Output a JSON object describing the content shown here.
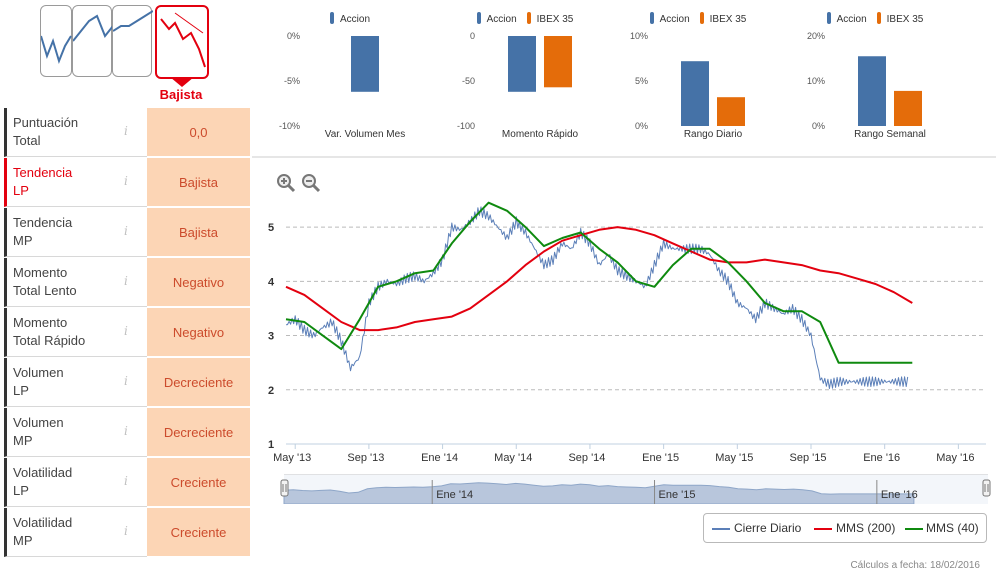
{
  "trend": {
    "active_label": "Bajista"
  },
  "score_table": [
    {
      "name_l1": "Puntuación",
      "name_l2": "Total",
      "value": "0,0",
      "highlight": false
    },
    {
      "name_l1": "Tendencia",
      "name_l2": "LP",
      "value": "Bajista",
      "highlight": true
    },
    {
      "name_l1": "Tendencia",
      "name_l2": "MP",
      "value": "Bajista",
      "highlight": false
    },
    {
      "name_l1": "Momento",
      "name_l2": "Total Lento",
      "value": "Negativo",
      "highlight": false
    },
    {
      "name_l1": "Momento",
      "name_l2": "Total Rápido",
      "value": "Negativo",
      "highlight": false
    },
    {
      "name_l1": "Volumen",
      "name_l2": "LP",
      "value": "Decreciente",
      "highlight": false
    },
    {
      "name_l1": "Volumen",
      "name_l2": "MP",
      "value": "Decreciente",
      "highlight": false
    },
    {
      "name_l1": "Volatilidad",
      "name_l2": "LP",
      "value": "Creciente",
      "highlight": false
    },
    {
      "name_l1": "Volatilidad",
      "name_l2": "MP",
      "value": "Creciente",
      "highlight": false
    }
  ],
  "info_glyph": "i",
  "colors": {
    "accion": "#4572a7",
    "ibex": "#e46c0a",
    "price": "#5b7fb8",
    "mms200": "#e3000f",
    "mms40": "#0f8a0f",
    "navigator": "#b8c6dc"
  },
  "chart_data": [
    {
      "type": "bar",
      "title": "Var. Volumen Mes",
      "series": [
        {
          "name": "Accion",
          "values": [
            -6.2
          ]
        }
      ],
      "ylim": [
        -10,
        0
      ],
      "yticks": [
        "0%",
        "-5%",
        "-10%"
      ]
    },
    {
      "type": "bar",
      "title": "Momento Rápido",
      "series": [
        {
          "name": "Accion",
          "values": [
            -62
          ]
        },
        {
          "name": "IBEX 35",
          "values": [
            -57
          ]
        }
      ],
      "ylim": [
        -100,
        0
      ],
      "yticks": [
        "0",
        "-50",
        "-100"
      ]
    },
    {
      "type": "bar",
      "title": "Rango Diario",
      "series": [
        {
          "name": "Accion",
          "values": [
            7.2
          ]
        },
        {
          "name": "IBEX 35",
          "values": [
            3.2
          ]
        }
      ],
      "ylim": [
        0,
        10
      ],
      "yticks": [
        "10%",
        "5%",
        "0%"
      ]
    },
    {
      "type": "bar",
      "title": "Rango Semanal",
      "series": [
        {
          "name": "Accion",
          "values": [
            15.5
          ]
        },
        {
          "name": "IBEX 35",
          "values": [
            7.8
          ]
        }
      ],
      "ylim": [
        0,
        20
      ],
      "yticks": [
        "20%",
        "10%",
        "0%"
      ]
    },
    {
      "type": "line",
      "ylim": [
        1,
        5.5
      ],
      "yticks": [
        "1",
        "2",
        "3",
        "4",
        "5"
      ],
      "xticks": [
        "May '13",
        "Sep '13",
        "Ene '14",
        "May '14",
        "Sep '14",
        "Ene '15",
        "May '15",
        "Sep '15",
        "Ene '16",
        "May '16"
      ],
      "x_range_months": [
        0,
        38
      ],
      "series": [
        {
          "name": "Cierre Diario",
          "x_months": [
            0,
            0.5,
            1,
            1.5,
            2,
            2.5,
            3,
            3.5,
            4,
            4.5,
            5,
            5.5,
            6,
            6.5,
            7,
            7.5,
            8,
            8.5,
            9,
            9.5,
            10,
            10.5,
            11,
            11.5,
            12,
            12.5,
            13,
            13.5,
            14,
            14.5,
            15,
            15.5,
            16,
            16.5,
            17,
            17.5,
            18,
            18.5,
            19,
            19.5,
            20,
            20.5,
            21,
            21.5,
            22,
            22.5,
            23,
            23.5,
            24,
            24.5,
            25,
            25.5,
            26,
            26.5,
            27,
            27.5,
            28,
            28.5,
            29,
            29.5,
            30,
            30.5,
            31,
            31.5,
            32,
            32.5,
            33,
            33.5,
            34
          ],
          "values": [
            3.2,
            3.3,
            3.1,
            3.0,
            3.15,
            3.25,
            2.9,
            2.4,
            2.6,
            3.6,
            3.9,
            4.0,
            3.95,
            4.05,
            4.1,
            4.0,
            4.15,
            4.4,
            5.0,
            4.95,
            5.1,
            5.3,
            5.2,
            5.0,
            4.8,
            5.1,
            4.9,
            4.6,
            4.3,
            4.4,
            4.7,
            4.6,
            4.9,
            4.7,
            4.3,
            4.5,
            4.2,
            4.1,
            4.0,
            3.9,
            4.3,
            4.7,
            4.6,
            4.6,
            4.6,
            4.6,
            4.5,
            4.2,
            4.0,
            3.6,
            3.5,
            3.3,
            3.6,
            3.5,
            3.4,
            3.5,
            3.3,
            3.0,
            2.2,
            2.1,
            2.15,
            2.15,
            2.15,
            2.15,
            2.15,
            2.15,
            2.15,
            2.15,
            2.15
          ]
        },
        {
          "name": "MMS (200)",
          "x_months": [
            0,
            1,
            2,
            3,
            4,
            5,
            6,
            7,
            8,
            9,
            10,
            11,
            12,
            13,
            14,
            15,
            16,
            17,
            18,
            19,
            20,
            21,
            22,
            23,
            24,
            25,
            26,
            27,
            28,
            29,
            30,
            31,
            32,
            33,
            34
          ],
          "values": [
            3.9,
            3.75,
            3.5,
            3.25,
            3.1,
            3.1,
            3.15,
            3.25,
            3.3,
            3.35,
            3.5,
            3.75,
            4.0,
            4.3,
            4.55,
            4.75,
            4.85,
            4.95,
            5.0,
            4.95,
            4.85,
            4.7,
            4.55,
            4.4,
            4.35,
            4.35,
            4.4,
            4.35,
            4.3,
            4.2,
            4.15,
            4.05,
            3.95,
            3.8,
            3.6
          ]
        },
        {
          "name": "MMS (40)",
          "x_months": [
            0,
            1,
            2,
            3,
            4,
            5,
            6,
            7,
            8,
            9,
            10,
            11,
            12,
            13,
            14,
            15,
            16,
            17,
            18,
            19,
            20,
            21,
            22,
            23,
            24,
            25,
            26,
            27,
            28,
            29,
            30,
            31,
            32,
            33,
            34
          ],
          "values": [
            3.3,
            3.25,
            3.0,
            2.75,
            3.3,
            3.9,
            4.0,
            4.15,
            4.2,
            4.7,
            5.1,
            5.45,
            5.3,
            5.0,
            4.65,
            4.8,
            4.9,
            4.6,
            4.35,
            4.0,
            3.9,
            4.3,
            4.6,
            4.6,
            4.35,
            4.0,
            3.6,
            3.45,
            3.45,
            3.25,
            2.5,
            2.5,
            2.5,
            2.5,
            2.5
          ]
        }
      ]
    }
  ],
  "bar_legends": [
    {
      "items": [
        "Accion"
      ]
    },
    {
      "items": [
        "Accion",
        "IBEX 35"
      ]
    },
    {
      "items": [
        "Accion",
        "IBEX 35"
      ]
    },
    {
      "items": [
        "Accion",
        "IBEX 35"
      ]
    }
  ],
  "navigator_labels": [
    "Ene '14",
    "Ene '15",
    "Ene '16"
  ],
  "main_legend": [
    "Cierre Diario",
    "MMS (200)",
    "MMS (40)"
  ],
  "footer": "Cálculos a fecha: 18/02/2016"
}
